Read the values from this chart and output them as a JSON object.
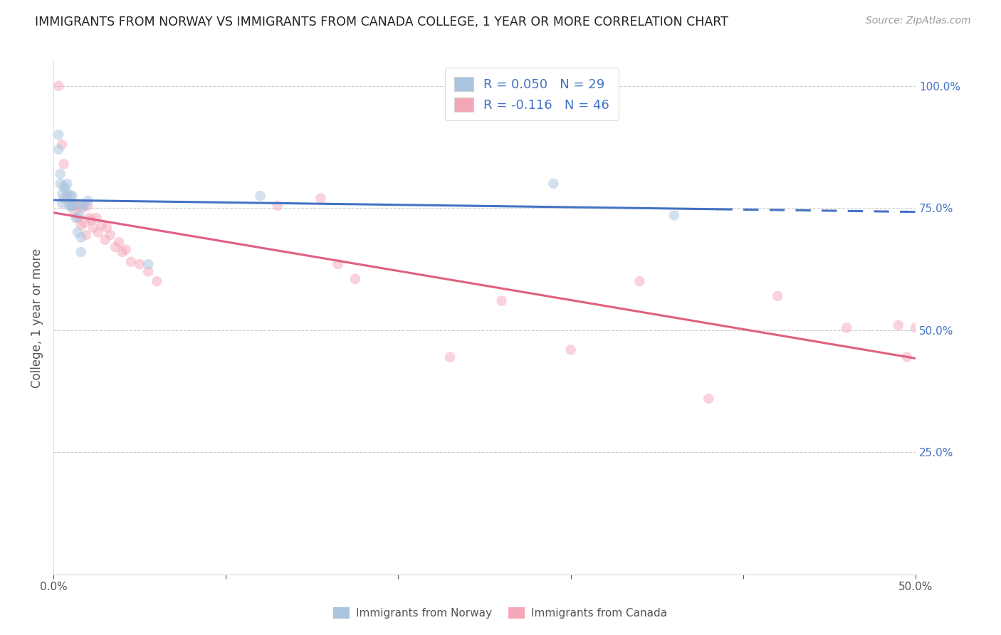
{
  "title": "IMMIGRANTS FROM NORWAY VS IMMIGRANTS FROM CANADA COLLEGE, 1 YEAR OR MORE CORRELATION CHART",
  "source": "Source: ZipAtlas.com",
  "ylabel": "College, 1 year or more",
  "xlim": [
    0.0,
    0.5
  ],
  "ylim": [
    0.0,
    1.05
  ],
  "yticks_right": [
    0.25,
    0.5,
    0.75,
    1.0
  ],
  "ytick_labels_right": [
    "25.0%",
    "50.0%",
    "75.0%",
    "100.0%"
  ],
  "norway_R": 0.05,
  "norway_N": 29,
  "canada_R": -0.116,
  "canada_N": 46,
  "norway_color": "#a8c4e0",
  "canada_color": "#f4a7b9",
  "norway_line_color": "#4472c4",
  "canada_line_color": "#e06080",
  "title_color": "#222222",
  "source_color": "#999999",
  "norway_scatter_x": [
    0.003,
    0.003,
    0.004,
    0.004,
    0.005,
    0.005,
    0.006,
    0.006,
    0.007,
    0.008,
    0.008,
    0.009,
    0.01,
    0.01,
    0.011,
    0.011,
    0.012,
    0.013,
    0.014,
    0.015,
    0.016,
    0.016,
    0.017,
    0.018,
    0.02,
    0.055,
    0.12,
    0.29,
    0.36
  ],
  "norway_scatter_y": [
    0.9,
    0.87,
    0.82,
    0.8,
    0.78,
    0.76,
    0.795,
    0.77,
    0.79,
    0.8,
    0.78,
    0.755,
    0.775,
    0.755,
    0.775,
    0.755,
    0.755,
    0.73,
    0.7,
    0.735,
    0.69,
    0.66,
    0.755,
    0.755,
    0.765,
    0.635,
    0.775,
    0.8,
    0.735
  ],
  "canada_scatter_x": [
    0.003,
    0.005,
    0.006,
    0.008,
    0.01,
    0.011,
    0.012,
    0.013,
    0.014,
    0.015,
    0.016,
    0.017,
    0.018,
    0.019,
    0.02,
    0.021,
    0.022,
    0.023,
    0.025,
    0.026,
    0.028,
    0.03,
    0.031,
    0.033,
    0.036,
    0.038,
    0.04,
    0.042,
    0.045,
    0.05,
    0.055,
    0.06,
    0.13,
    0.155,
    0.165,
    0.175,
    0.23,
    0.26,
    0.3,
    0.34,
    0.38,
    0.42,
    0.46,
    0.49,
    0.495,
    0.5
  ],
  "canada_scatter_y": [
    1.0,
    0.88,
    0.84,
    0.77,
    0.755,
    0.755,
    0.74,
    0.755,
    0.73,
    0.755,
    0.715,
    0.75,
    0.72,
    0.695,
    0.755,
    0.73,
    0.725,
    0.71,
    0.73,
    0.7,
    0.715,
    0.685,
    0.71,
    0.695,
    0.67,
    0.68,
    0.66,
    0.665,
    0.64,
    0.635,
    0.62,
    0.6,
    0.755,
    0.77,
    0.635,
    0.605,
    0.445,
    0.56,
    0.46,
    0.6,
    0.36,
    0.57,
    0.505,
    0.51,
    0.445,
    0.505
  ],
  "grid_color": "#cccccc",
  "background_color": "#ffffff",
  "marker_size": 110,
  "marker_alpha": 0.5
}
